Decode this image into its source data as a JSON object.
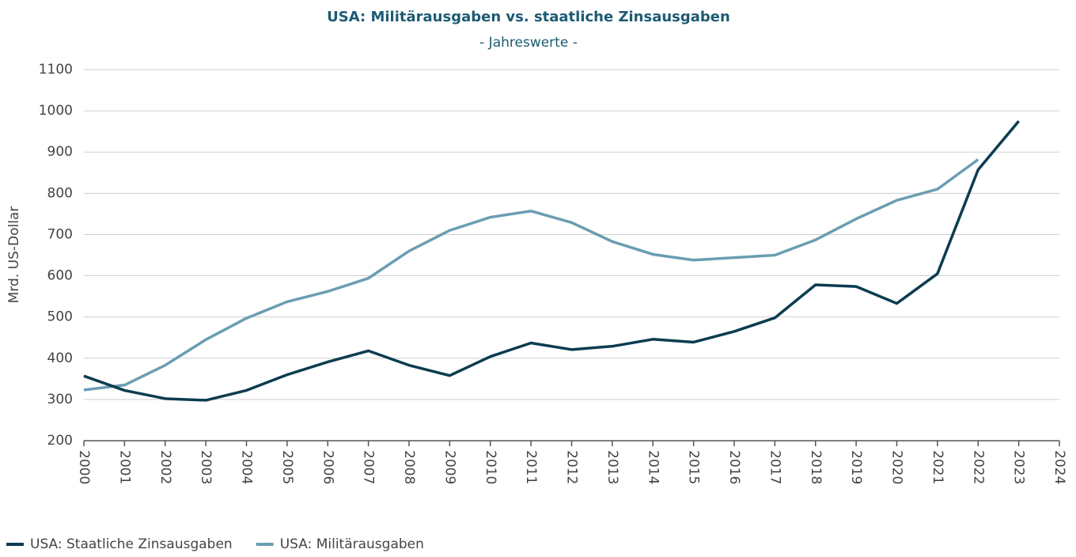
{
  "chart_data": {
    "type": "line",
    "title": "USA: Militärausgaben vs. staatliche Zinsausgaben",
    "subtitle": "- Jahreswerte -",
    "y_label": "Mrd. US-Dollar",
    "x": [
      2000,
      2001,
      2002,
      2003,
      2004,
      2005,
      2006,
      2007,
      2008,
      2009,
      2010,
      2011,
      2012,
      2013,
      2014,
      2015,
      2016,
      2017,
      2018,
      2019,
      2020,
      2021,
      2022,
      2023
    ],
    "series": [
      {
        "name": "USA: Staatliche Zinsausgaben",
        "color": "#0c3c50",
        "values": [
          357,
          322,
          302,
          298,
          322,
          360,
          391,
          418,
          383,
          358,
          404,
          437,
          421,
          429,
          446,
          439,
          465,
          498,
          578,
          574,
          533,
          605,
          857,
          975
        ]
      },
      {
        "name": "USA: Militärausgaben",
        "color": "#6b9db3",
        "values": [
          323,
          335,
          383,
          445,
          497,
          537,
          562,
          594,
          660,
          710,
          742,
          757,
          729,
          683,
          652,
          638,
          644,
          650,
          687,
          738,
          783,
          810,
          882,
          null
        ]
      }
    ],
    "xlim": [
      2000,
      2024
    ],
    "xticks": [
      2000,
      2001,
      2002,
      2003,
      2004,
      2005,
      2006,
      2007,
      2008,
      2009,
      2010,
      2011,
      2012,
      2013,
      2014,
      2015,
      2016,
      2017,
      2018,
      2019,
      2020,
      2021,
      2022,
      2023,
      2024
    ],
    "ylim": [
      200,
      1100
    ],
    "yticks": [
      200,
      300,
      400,
      500,
      600,
      700,
      800,
      900,
      1000,
      1100
    ],
    "grid": true,
    "legend": "bottom-left"
  }
}
